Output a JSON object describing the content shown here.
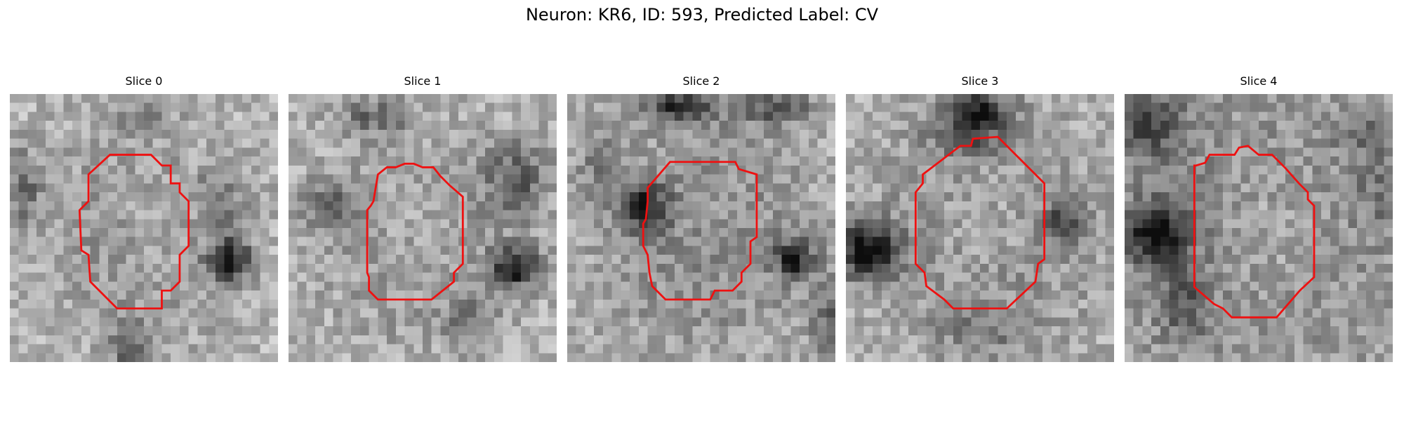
{
  "figure": {
    "title": "Neuron: KR6, ID: 593, Predicted Label: CV"
  },
  "slices": [
    {
      "title": "Slice 0"
    },
    {
      "title": "Slice 1"
    },
    {
      "title": "Slice 2"
    },
    {
      "title": "Slice 3"
    },
    {
      "title": "Slice 4"
    }
  ],
  "colors": {
    "contour": "#ee1111",
    "background": "#ffffff"
  }
}
